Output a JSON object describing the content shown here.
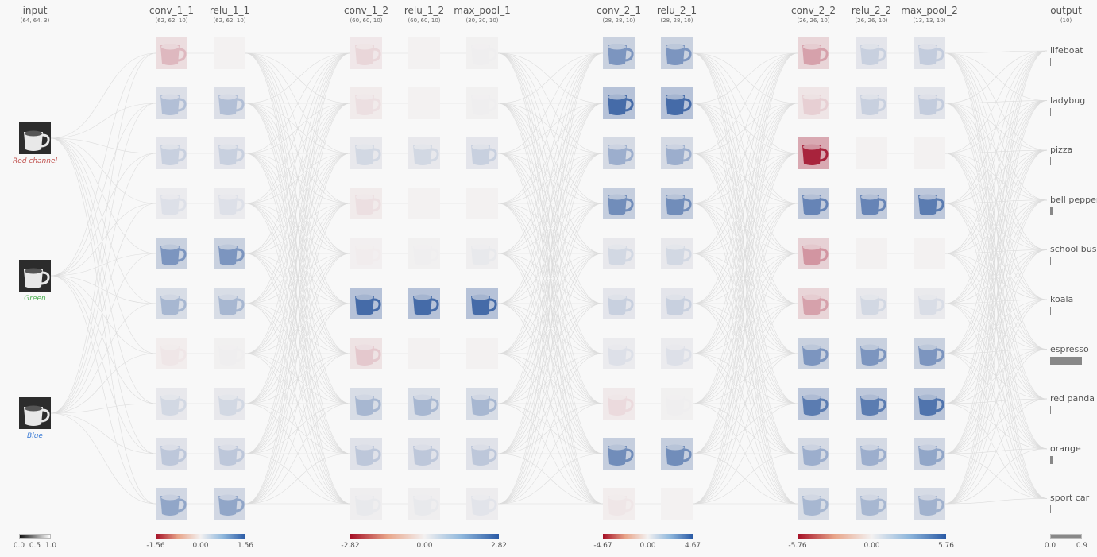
{
  "columns": {
    "input": {
      "title": "input",
      "dims": "(64, 64, 3)"
    },
    "conv_1_1": {
      "title": "conv_1_1",
      "dims": "(62, 62, 10)"
    },
    "relu_1_1": {
      "title": "relu_1_1",
      "dims": "(62, 62, 10)"
    },
    "conv_1_2": {
      "title": "conv_1_2",
      "dims": "(60, 60, 10)"
    },
    "relu_1_2": {
      "title": "relu_1_2",
      "dims": "(60, 60, 10)"
    },
    "max_pool_1": {
      "title": "max_pool_1",
      "dims": "(30, 30, 10)"
    },
    "conv_2_1": {
      "title": "conv_2_1",
      "dims": "(28, 28, 10)"
    },
    "relu_2_1": {
      "title": "relu_2_1",
      "dims": "(28, 28, 10)"
    },
    "conv_2_2": {
      "title": "conv_2_2",
      "dims": "(26, 26, 10)"
    },
    "relu_2_2": {
      "title": "relu_2_2",
      "dims": "(26, 26, 10)"
    },
    "max_pool_2": {
      "title": "max_pool_2",
      "dims": "(13, 13, 10)"
    },
    "output": {
      "title": "output",
      "dims": "(10)"
    }
  },
  "input_channels": [
    {
      "label": "Red channel",
      "color": "#c0504d"
    },
    {
      "label": "Green",
      "color": "#4caf50"
    },
    {
      "label": "Blue",
      "color": "#3a7bd5"
    }
  ],
  "activations": {
    "conv_1_1": [
      -0.25,
      0.3,
      0.2,
      0.1,
      0.55,
      0.35,
      -0.05,
      0.15,
      0.25,
      0.45
    ],
    "relu_1_1": [
      0.0,
      0.3,
      0.2,
      0.1,
      0.55,
      0.35,
      0.02,
      0.15,
      0.25,
      0.45
    ],
    "conv_1_2": [
      -0.12,
      -0.08,
      0.15,
      -0.08,
      -0.02,
      0.8,
      -0.18,
      0.35,
      0.25,
      0.05
    ],
    "relu_1_2": [
      0.0,
      0.0,
      0.15,
      0.0,
      0.02,
      0.8,
      0.0,
      0.35,
      0.25,
      0.05
    ],
    "max_pool_1": [
      0.02,
      0.02,
      0.2,
      0.0,
      0.05,
      0.8,
      0.0,
      0.35,
      0.25,
      0.08
    ],
    "conv_2_1": [
      0.55,
      0.8,
      0.4,
      0.6,
      0.15,
      0.2,
      0.1,
      -0.1,
      0.6,
      -0.05
    ],
    "relu_2_1": [
      0.55,
      0.8,
      0.4,
      0.6,
      0.15,
      0.2,
      0.1,
      0.02,
      0.6,
      0.0
    ],
    "conv_2_2": [
      -0.35,
      -0.15,
      -0.9,
      0.65,
      -0.4,
      -0.35,
      0.55,
      0.7,
      0.4,
      0.35
    ],
    "relu_2_2": [
      0.2,
      0.2,
      0.0,
      0.65,
      0.0,
      0.15,
      0.55,
      0.7,
      0.4,
      0.35
    ],
    "max_pool_2": [
      0.22,
      0.22,
      0.0,
      0.7,
      0.0,
      0.12,
      0.55,
      0.75,
      0.45,
      0.38
    ]
  },
  "output": {
    "classes": [
      "lifeboat",
      "ladybug",
      "pizza",
      "bell pepper",
      "school bus",
      "koala",
      "espresso",
      "red panda",
      "orange",
      "sport car"
    ],
    "values": [
      0.0,
      0.01,
      0.0,
      0.07,
      0.0,
      0.0,
      0.9,
      0.0,
      0.1,
      0.0
    ]
  },
  "legends": [
    {
      "ticks": [
        "0.0",
        "0.5",
        "1.0"
      ],
      "type": "gray"
    },
    {
      "ticks": [
        "-1.56",
        "0.00",
        "1.56"
      ],
      "type": "div"
    },
    {
      "ticks": [
        "-2.82",
        "0.00",
        "2.82"
      ],
      "type": "div"
    },
    {
      "ticks": [
        "-4.67",
        "0.00",
        "4.67"
      ],
      "type": "div"
    },
    {
      "ticks": [
        "-5.76",
        "0.00",
        "5.76"
      ],
      "type": "div"
    },
    {
      "ticks": [
        "0.0",
        "0.9"
      ],
      "type": "gray"
    }
  ],
  "colors": {
    "positive": "#2a5aa5",
    "negative": "#a50f26",
    "zero": "#f3f1f1",
    "link": "#dcdcdc",
    "bar": "#888888"
  }
}
